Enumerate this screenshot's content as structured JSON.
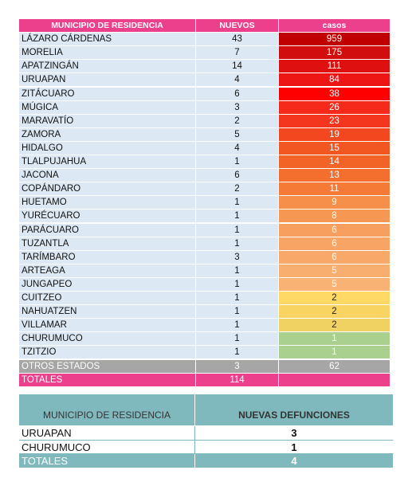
{
  "cases_table": {
    "headers": [
      "MUNICIPIO DE RESIDENCIA",
      "NUEVOS",
      "casos"
    ],
    "rows": [
      {
        "name": "LÁZARO CÁRDENAS",
        "nuevos": "43",
        "casos": "959",
        "color": "#c00000"
      },
      {
        "name": "MORELIA",
        "nuevos": "7",
        "casos": "175",
        "color": "#d10d0d"
      },
      {
        "name": "APATZINGÁN",
        "nuevos": "14",
        "casos": "111",
        "color": "#df1010"
      },
      {
        "name": "URUAPAN",
        "nuevos": "4",
        "casos": "84",
        "color": "#ee1515"
      },
      {
        "name": "ZITÁCUARO",
        "nuevos": "6",
        "casos": "38",
        "color": "#ff0000"
      },
      {
        "name": "MÚGICA",
        "nuevos": "3",
        "casos": "26",
        "color": "#f62a1a"
      },
      {
        "name": "MARAVATÍO",
        "nuevos": "2",
        "casos": "23",
        "color": "#f4361e"
      },
      {
        "name": "ZAMORA",
        "nuevos": "5",
        "casos": "19",
        "color": "#f2471f"
      },
      {
        "name": "HIDALGO",
        "nuevos": "4",
        "casos": "15",
        "color": "#f25722"
      },
      {
        "name": "TLALPUJAHUA",
        "nuevos": "1",
        "casos": "14",
        "color": "#f26326"
      },
      {
        "name": "JACONA",
        "nuevos": "6",
        "casos": "13",
        "color": "#f46e2e"
      },
      {
        "name": "COPÁNDARO",
        "nuevos": "2",
        "casos": "11",
        "color": "#f57a36"
      },
      {
        "name": "HUETAMO",
        "nuevos": "1",
        "casos": "9",
        "color": "#f58f4a"
      },
      {
        "name": "YURÉCUARO",
        "nuevos": "1",
        "casos": "8",
        "color": "#f69854"
      },
      {
        "name": "PARÁCUARO",
        "nuevos": "1",
        "casos": "6",
        "color": "#f79f5e"
      },
      {
        "name": "TUZANTLA",
        "nuevos": "1",
        "casos": "6",
        "color": "#f7a464"
      },
      {
        "name": "TARÍMBARO",
        "nuevos": "3",
        "casos": "6",
        "color": "#f8a96a"
      },
      {
        "name": "ARTEAGA",
        "nuevos": "1",
        "casos": "5",
        "color": "#f8ae6f"
      },
      {
        "name": "JUNGAPEO",
        "nuevos": "1",
        "casos": "5",
        "color": "#f8b374"
      },
      {
        "name": "CUITZEO",
        "nuevos": "1",
        "casos": "2",
        "color": "#ffd966"
      },
      {
        "name": "NAHUATZEN",
        "nuevos": "1",
        "casos": "2",
        "color": "#f8d563"
      },
      {
        "name": "VILLAMAR",
        "nuevos": "1",
        "casos": "2",
        "color": "#f0d262"
      },
      {
        "name": "CHURUMUCO",
        "nuevos": "1",
        "casos": "1",
        "color": "#a9d08e"
      },
      {
        "name": "TZITZIO",
        "nuevos": "1",
        "casos": "1",
        "color": "#a9d08e"
      }
    ],
    "other": {
      "name": "OTROS ESTADOS",
      "nuevos": "3",
      "casos": "62"
    },
    "totals": {
      "name": "TOTALES",
      "nuevos": "114"
    }
  },
  "deaths_table": {
    "headers": [
      "MUNICIPIO DE RESIDENCIA",
      "NUEVAS DEFUNCIONES"
    ],
    "rows": [
      {
        "name": "URUAPAN",
        "value": "3"
      },
      {
        "name": "CHURUMUCO",
        "value": "1"
      }
    ],
    "totals": {
      "name": "TOTALES",
      "value": "4"
    }
  }
}
